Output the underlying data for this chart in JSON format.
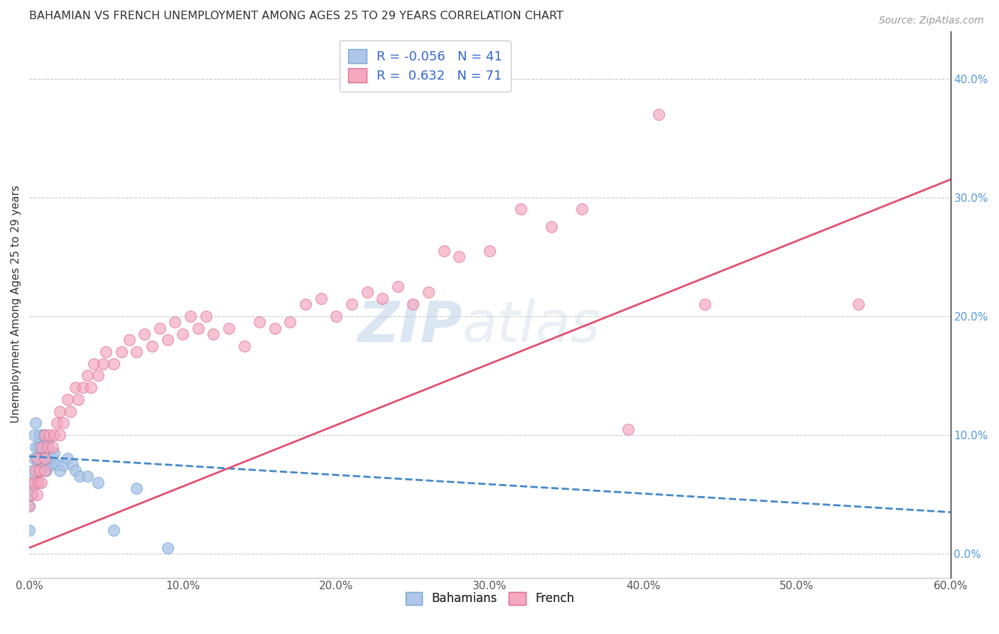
{
  "title": "BAHAMIAN VS FRENCH UNEMPLOYMENT AMONG AGES 25 TO 29 YEARS CORRELATION CHART",
  "source": "Source: ZipAtlas.com",
  "ylabel": "Unemployment Among Ages 25 to 29 years",
  "xlim": [
    0.0,
    0.6
  ],
  "ylim": [
    -0.02,
    0.44
  ],
  "xticks": [
    0.0,
    0.1,
    0.2,
    0.3,
    0.4,
    0.5,
    0.6
  ],
  "yticks_right": [
    0.0,
    0.1,
    0.2,
    0.3,
    0.4
  ],
  "bahamian_color": "#aec6e8",
  "bahamian_edge": "#7aaad4",
  "french_color": "#f5a8bf",
  "french_edge": "#e07090",
  "line_blue": "#4488cc",
  "line_pink": "#e05070",
  "R_bahamian": -0.056,
  "N_bahamian": 41,
  "R_french": 0.632,
  "N_french": 71,
  "bahamian_x": [
    0.0,
    0.0,
    0.0,
    0.002,
    0.002,
    0.003,
    0.003,
    0.004,
    0.004,
    0.005,
    0.005,
    0.006,
    0.006,
    0.007,
    0.007,
    0.008,
    0.008,
    0.009,
    0.009,
    0.01,
    0.01,
    0.011,
    0.011,
    0.012,
    0.012,
    0.013,
    0.014,
    0.015,
    0.016,
    0.018,
    0.02,
    0.022,
    0.025,
    0.028,
    0.03,
    0.033,
    0.038,
    0.045,
    0.055,
    0.07,
    0.09
  ],
  "bahamian_y": [
    0.04,
    0.06,
    0.02,
    0.05,
    0.07,
    0.08,
    0.1,
    0.09,
    0.11,
    0.06,
    0.08,
    0.07,
    0.09,
    0.08,
    0.1,
    0.07,
    0.09,
    0.08,
    0.1,
    0.075,
    0.09,
    0.07,
    0.085,
    0.08,
    0.095,
    0.085,
    0.075,
    0.08,
    0.085,
    0.075,
    0.07,
    0.075,
    0.08,
    0.075,
    0.07,
    0.065,
    0.065,
    0.06,
    0.02,
    0.055,
    0.005
  ],
  "french_x": [
    0.0,
    0.0,
    0.002,
    0.003,
    0.004,
    0.005,
    0.005,
    0.006,
    0.007,
    0.008,
    0.008,
    0.01,
    0.01,
    0.01,
    0.012,
    0.013,
    0.015,
    0.016,
    0.018,
    0.02,
    0.02,
    0.022,
    0.025,
    0.027,
    0.03,
    0.032,
    0.035,
    0.038,
    0.04,
    0.042,
    0.045,
    0.048,
    0.05,
    0.055,
    0.06,
    0.065,
    0.07,
    0.075,
    0.08,
    0.085,
    0.09,
    0.095,
    0.1,
    0.105,
    0.11,
    0.115,
    0.12,
    0.13,
    0.14,
    0.15,
    0.16,
    0.17,
    0.18,
    0.19,
    0.2,
    0.21,
    0.22,
    0.23,
    0.24,
    0.25,
    0.26,
    0.27,
    0.28,
    0.3,
    0.32,
    0.34,
    0.36,
    0.39,
    0.41,
    0.44,
    0.54
  ],
  "french_y": [
    0.04,
    0.06,
    0.05,
    0.06,
    0.07,
    0.05,
    0.08,
    0.06,
    0.07,
    0.06,
    0.09,
    0.07,
    0.08,
    0.1,
    0.09,
    0.1,
    0.09,
    0.1,
    0.11,
    0.1,
    0.12,
    0.11,
    0.13,
    0.12,
    0.14,
    0.13,
    0.14,
    0.15,
    0.14,
    0.16,
    0.15,
    0.16,
    0.17,
    0.16,
    0.17,
    0.18,
    0.17,
    0.185,
    0.175,
    0.19,
    0.18,
    0.195,
    0.185,
    0.2,
    0.19,
    0.2,
    0.185,
    0.19,
    0.175,
    0.195,
    0.19,
    0.195,
    0.21,
    0.215,
    0.2,
    0.21,
    0.22,
    0.215,
    0.225,
    0.21,
    0.22,
    0.255,
    0.25,
    0.255,
    0.29,
    0.275,
    0.29,
    0.105,
    0.37,
    0.21,
    0.21
  ],
  "watermark_zip": "ZIP",
  "watermark_atlas": "atlas",
  "background_color": "#ffffff",
  "grid_color": "#cccccc",
  "french_line_start_x": 0.0,
  "french_line_start_y": 0.005,
  "french_line_end_x": 0.6,
  "french_line_end_y": 0.315,
  "bahamian_line_start_x": 0.0,
  "bahamian_line_start_y": 0.082,
  "bahamian_line_end_x": 0.6,
  "bahamian_line_end_y": 0.035
}
